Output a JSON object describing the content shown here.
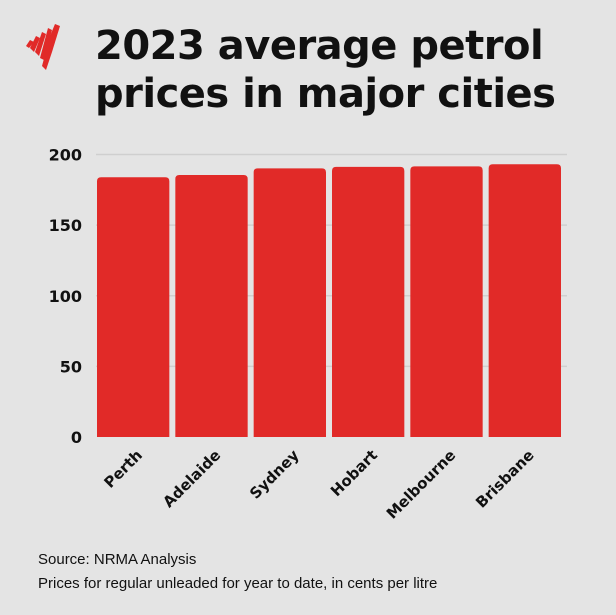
{
  "title_lines": [
    "2023 average petrol",
    "prices in major cities"
  ],
  "source": "Source: NRMA Analysis",
  "note": "Prices for regular unleaded for year to date, in cents per litre",
  "logo": "sbs-logo",
  "colors": {
    "bar": "#e12a28",
    "background": "#e4e4e4",
    "grid": "#cfcfcf"
  },
  "chart_data": {
    "type": "bar",
    "title": "2023 average petrol prices in major cities",
    "categories": [
      "Perth",
      "Adelaide",
      "Sydney",
      "Hobart",
      "Melbourne",
      "Brisbane"
    ],
    "values": [
      183.9,
      185.5,
      190.2,
      191.2,
      191.6,
      193.1
    ],
    "yticks": [
      0,
      50,
      100,
      150,
      200
    ],
    "ylim": [
      0,
      200
    ],
    "xlabel": "",
    "ylabel": "",
    "grid": true
  }
}
